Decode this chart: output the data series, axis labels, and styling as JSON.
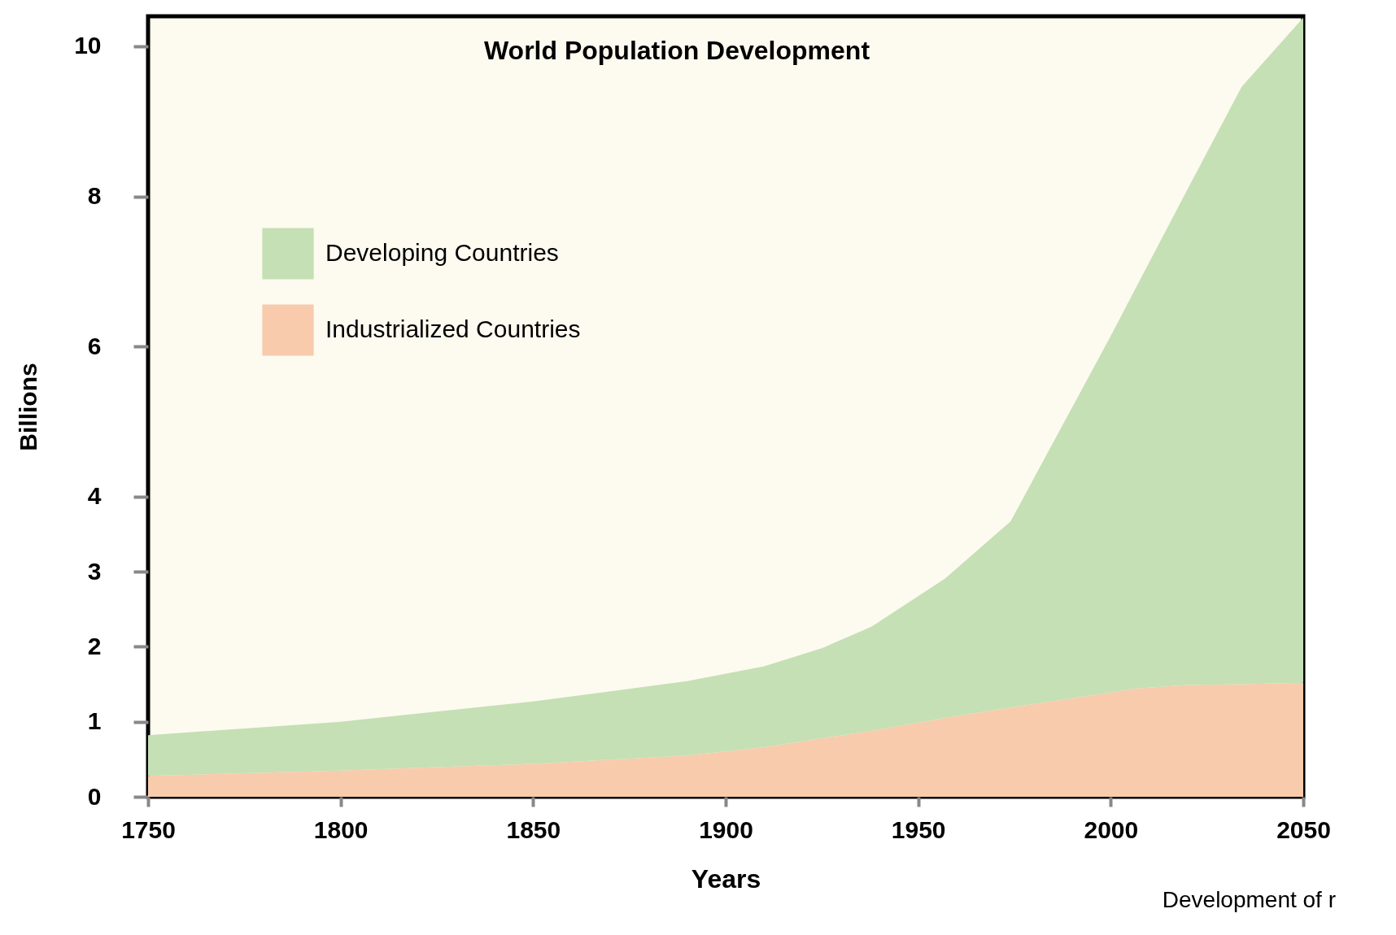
{
  "chart_data": {
    "type": "area",
    "title": "World Population Development",
    "xlabel": "Years",
    "ylabel": "Billions",
    "x": [
      1750,
      1800,
      1850,
      1890,
      1910,
      1925,
      1938,
      1957,
      1974,
      2000,
      2006,
      2020,
      2034,
      2050
    ],
    "stacked": true,
    "series": [
      {
        "name": "Industrialized Countries",
        "color": "#f8cbad",
        "values": [
          0.28,
          0.35,
          0.44,
          0.55,
          0.66,
          0.78,
          0.88,
          1.05,
          1.19,
          1.39,
          1.44,
          1.49,
          1.5,
          1.52
        ]
      },
      {
        "name": "Developing Countries",
        "color": "#c5e0b4",
        "values": [
          0.54,
          0.65,
          0.83,
          0.99,
          1.08,
          1.2,
          1.39,
          1.86,
          2.48,
          4.75,
          5.29,
          6.61,
          7.96,
          8.86
        ]
      }
    ],
    "xlim": [
      1750,
      2050
    ],
    "xticks": [
      1750,
      1800,
      1850,
      1900,
      1950,
      2000,
      2050
    ],
    "ylim": [
      0,
      10.4
    ],
    "yticks": [
      0,
      1,
      2,
      3,
      4,
      6,
      8,
      10
    ],
    "legend": "top left",
    "annotations": [
      "Development of r"
    ]
  }
}
